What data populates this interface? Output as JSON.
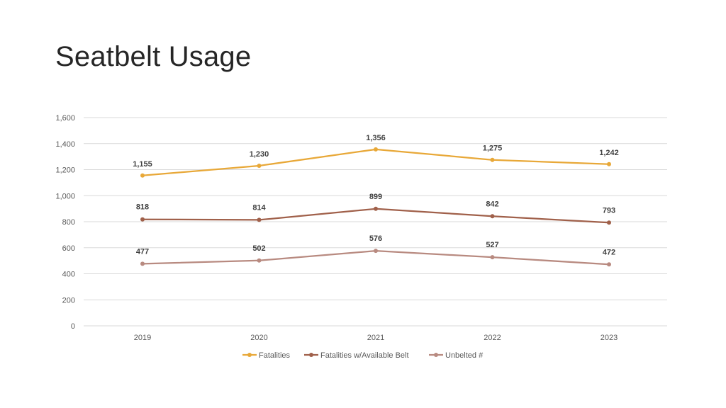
{
  "slide": {
    "title": "Seatbelt Usage"
  },
  "chart_data": {
    "type": "line",
    "title": "",
    "xlabel": "",
    "ylabel": "",
    "categories": [
      "2019",
      "2020",
      "2021",
      "2022",
      "2023"
    ],
    "ylim": [
      0,
      1600
    ],
    "yticks": [
      0,
      200,
      400,
      600,
      800,
      1000,
      1200,
      1400,
      1600
    ],
    "ytick_labels": [
      "0",
      "200",
      "400",
      "600",
      "800",
      "1,000",
      "1,200",
      "1,400",
      "1,600"
    ],
    "grid": true,
    "legend_position": "bottom",
    "series": [
      {
        "name": "Fatalities",
        "color": "#E8A838",
        "values": [
          1155,
          1230,
          1356,
          1275,
          1242
        ],
        "labels": [
          "1,155",
          "1,230",
          "1,356",
          "1,275",
          "1,242"
        ]
      },
      {
        "name": "Fatalities w/Available Belt",
        "color": "#A0604A",
        "values": [
          818,
          814,
          899,
          842,
          793
        ],
        "labels": [
          "818",
          "814",
          "899",
          "842",
          "793"
        ]
      },
      {
        "name": "Unbelted #",
        "color": "#B88A80",
        "values": [
          477,
          502,
          576,
          527,
          472
        ],
        "labels": [
          "477",
          "502",
          "576",
          "527",
          "472"
        ]
      }
    ]
  }
}
